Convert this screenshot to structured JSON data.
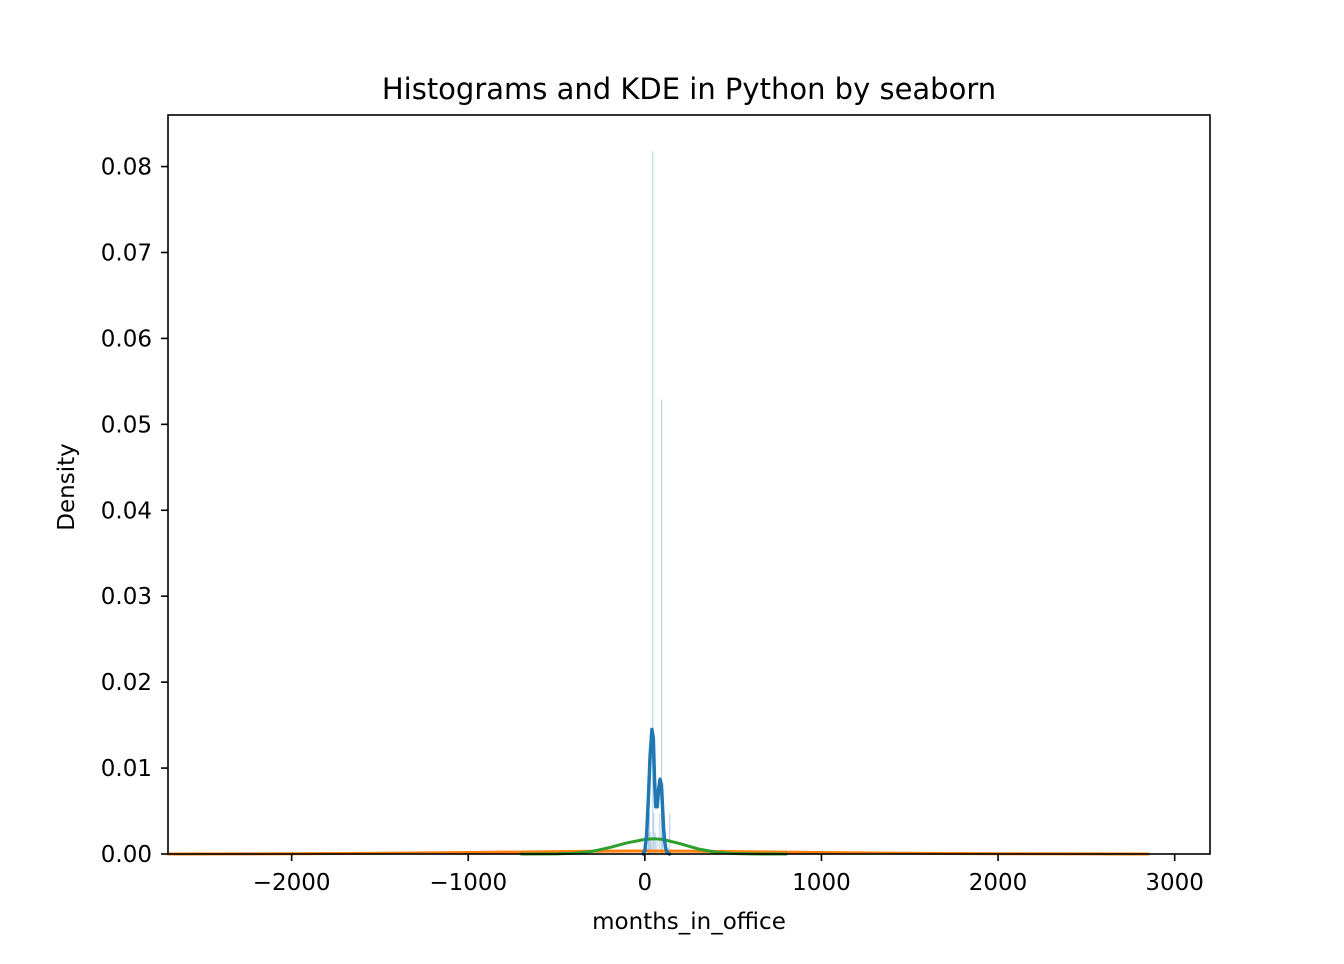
{
  "chart_data": {
    "type": "histogram+kde",
    "title": "Histograms and KDE in Python by seaborn",
    "xlabel": "months_in_office",
    "ylabel": "Density",
    "xlim": [
      -2700,
      3200
    ],
    "ylim": [
      0,
      0.086
    ],
    "x_ticks": [
      -2000,
      -1000,
      0,
      1000,
      2000,
      3000
    ],
    "x_tick_labels": [
      "−2000",
      "−1000",
      "0",
      "1000",
      "2000",
      "3000"
    ],
    "y_ticks": [
      0.0,
      0.01,
      0.02,
      0.03,
      0.04,
      0.05,
      0.06,
      0.07,
      0.08
    ],
    "y_tick_labels": [
      "0.00",
      "0.01",
      "0.02",
      "0.03",
      "0.04",
      "0.05",
      "0.06",
      "0.07",
      "0.08"
    ],
    "grid": false,
    "colors": {
      "histogram": "#a6c6e0",
      "kde_blue": "#1f77b4",
      "kde_orange": "#ff7f0e",
      "kde_green": "#2ca02c"
    },
    "histogram": {
      "bin_width": 4,
      "bins": [
        {
          "x": 15,
          "density": 0.0008
        },
        {
          "x": 20,
          "density": 0.0025
        },
        {
          "x": 25,
          "density": 0.0047
        },
        {
          "x": 30,
          "density": 0.0025
        },
        {
          "x": 35,
          "density": 0.0015
        },
        {
          "x": 44,
          "density": 0.0818
        },
        {
          "x": 50,
          "density": 0.0047
        },
        {
          "x": 58,
          "density": 0.0025
        },
        {
          "x": 68,
          "density": 0.0015
        },
        {
          "x": 84,
          "density": 0.0047
        },
        {
          "x": 94,
          "density": 0.0529
        },
        {
          "x": 100,
          "density": 0.0025
        },
        {
          "x": 110,
          "density": 0.0015
        },
        {
          "x": 120,
          "density": 0.0012
        },
        {
          "x": 140,
          "density": 0.0047
        }
      ]
    },
    "series": [
      {
        "x": [
          -10,
          0,
          10,
          20,
          30,
          40,
          48,
          55,
          62,
          70,
          78,
          86,
          94,
          100,
          106,
          112,
          118,
          124,
          130,
          140
        ],
        "y": [
          0.0,
          0.0004,
          0.0022,
          0.0065,
          0.0115,
          0.0145,
          0.0135,
          0.0085,
          0.0055,
          0.0055,
          0.0075,
          0.0087,
          0.008,
          0.0055,
          0.003,
          0.0015,
          0.0007,
          0.0003,
          0.0001,
          0.0
        ]
      },
      {
        "x": [
          -2700,
          -2000,
          -1500,
          -1000,
          -500,
          -300,
          0,
          300,
          500,
          1000,
          1500,
          2000,
          2500,
          2850
        ],
        "y": [
          0.0,
          3e-05,
          8e-05,
          0.00018,
          0.00028,
          0.00032,
          0.00035,
          0.00032,
          0.00028,
          0.00018,
          8e-05,
          3e-05,
          1e-05,
          0.0
        ]
      },
      {
        "x": [
          -700,
          -500,
          -400,
          -300,
          -200,
          -100,
          0,
          50,
          100,
          200,
          300,
          400,
          500,
          600,
          800
        ],
        "y": [
          0.0,
          2e-05,
          8e-05,
          0.0003,
          0.00075,
          0.0013,
          0.0017,
          0.00178,
          0.0017,
          0.0012,
          0.0006,
          0.00022,
          6e-05,
          1e-05,
          0.0
        ]
      }
    ]
  }
}
